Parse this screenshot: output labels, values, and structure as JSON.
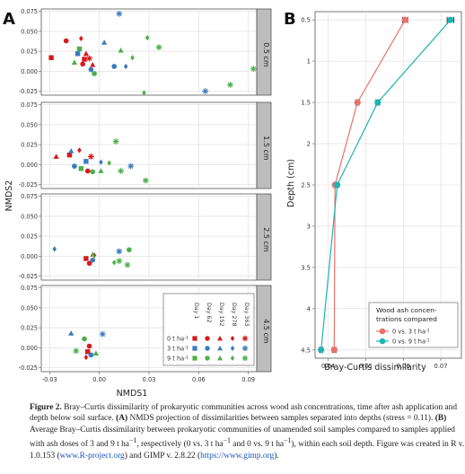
{
  "panel_a": {
    "letter": "A",
    "xlabel": "NMDS1",
    "ylabel": "NMDS2",
    "xlim": [
      -0.035,
      0.095
    ],
    "ylim": [
      -0.03,
      0.078
    ],
    "xticks": [
      "-0.03",
      "0.00",
      "0.03",
      "0.06",
      "0.09"
    ],
    "yticks": [
      "0.075",
      "0.050",
      "0.025",
      "0.000",
      "-0.025"
    ],
    "facets": [
      "0.5 cm",
      "1.5 cm",
      "2.5 cm",
      "4.5 cm"
    ],
    "legend": {
      "days": [
        "Day 1",
        "Day 62",
        "Day 152",
        "Day 278",
        "Day 363"
      ],
      "rows": [
        "0 t ha",
        "3 t ha",
        "9 t ha"
      ],
      "row_superscript": "-1",
      "colors": [
        "#d7191c",
        "#3a7bbf",
        "#4daf4a"
      ],
      "shapes": [
        "square",
        "circle",
        "triangle",
        "diamond",
        "star"
      ]
    }
  },
  "panel_b": {
    "letter": "B",
    "xlabel": "Bray-Curtis dissimilarity",
    "ylabel": "Depth (cm)",
    "xticks": [
      "0.04",
      "0.05",
      "0.06",
      "0.07"
    ],
    "yticks": [
      "0.5",
      "1",
      "1.5",
      "2",
      "2.5",
      "3",
      "3.5",
      "4",
      "4.5"
    ],
    "legend_title_line1": "Wood ash concen-",
    "legend_title_line2": "trations compared",
    "legend_entries": [
      "0 vs. 3 t ha",
      "0 vs. 9 t ha"
    ],
    "legend_superscript": "-1"
  },
  "chart_data": [
    {
      "type": "scatter",
      "title": "",
      "xlabel": "NMDS1",
      "ylabel": "NMDS2",
      "xlim": [
        -0.035,
        0.095
      ],
      "ylim": [
        -0.03,
        0.078
      ],
      "grid": true,
      "facet_by": "depth",
      "series_key": "ash dose (color) x sampling day (shape)",
      "points": [
        {
          "facet": "0.5 cm",
          "dose": 0,
          "day": 1,
          "x": -0.029,
          "y": 0.017
        },
        {
          "facet": "0.5 cm",
          "dose": 0,
          "day": 62,
          "x": -0.02,
          "y": 0.038
        },
        {
          "facet": "0.5 cm",
          "dose": 0,
          "day": 152,
          "x": -0.008,
          "y": 0.022
        },
        {
          "facet": "0.5 cm",
          "dose": 0,
          "day": 278,
          "x": -0.011,
          "y": 0.041
        },
        {
          "facet": "0.5 cm",
          "dose": 0,
          "day": 363,
          "x": -0.006,
          "y": 0.016
        },
        {
          "facet": "0.5 cm",
          "dose": 0,
          "day": 1,
          "x": -0.009,
          "y": 0.015
        },
        {
          "facet": "0.5 cm",
          "dose": 0,
          "day": 62,
          "x": -0.01,
          "y": 0.009
        },
        {
          "facet": "0.5 cm",
          "dose": 0,
          "day": 152,
          "x": -0.004,
          "y": 0.008
        },
        {
          "facet": "0.5 cm",
          "dose": 3,
          "day": 1,
          "x": -0.013,
          "y": 0.022
        },
        {
          "facet": "0.5 cm",
          "dose": 3,
          "day": 62,
          "x": -0.005,
          "y": 0.002
        },
        {
          "facet": "0.5 cm",
          "dose": 3,
          "day": 152,
          "x": 0.003,
          "y": 0.036
        },
        {
          "facet": "0.5 cm",
          "dose": 3,
          "day": 278,
          "x": 0.016,
          "y": 0.006
        },
        {
          "facet": "0.5 cm",
          "dose": 3,
          "day": 363,
          "x": 0.012,
          "y": 0.072
        },
        {
          "facet": "0.5 cm",
          "dose": 3,
          "day": 363,
          "x": 0.064,
          "y": -0.025
        },
        {
          "facet": "0.5 cm",
          "dose": 3,
          "day": 62,
          "x": 0.009,
          "y": 0.006
        },
        {
          "facet": "0.5 cm",
          "dose": 9,
          "day": 1,
          "x": -0.012,
          "y": 0.028
        },
        {
          "facet": "0.5 cm",
          "dose": 9,
          "day": 62,
          "x": -0.003,
          "y": -0.003
        },
        {
          "facet": "0.5 cm",
          "dose": 9,
          "day": 152,
          "x": -0.015,
          "y": 0.011
        },
        {
          "facet": "0.5 cm",
          "dose": 9,
          "day": 152,
          "x": 0.013,
          "y": 0.026
        },
        {
          "facet": "0.5 cm",
          "dose": 9,
          "day": 278,
          "x": 0.02,
          "y": 0.017
        },
        {
          "facet": "0.5 cm",
          "dose": 9,
          "day": 278,
          "x": 0.029,
          "y": 0.042
        },
        {
          "facet": "0.5 cm",
          "dose": 9,
          "day": 278,
          "x": 0.027,
          "y": -0.027
        },
        {
          "facet": "0.5 cm",
          "dose": 9,
          "day": 363,
          "x": 0.036,
          "y": 0.03
        },
        {
          "facet": "0.5 cm",
          "dose": 9,
          "day": 363,
          "x": 0.079,
          "y": -0.017
        },
        {
          "facet": "0.5 cm",
          "dose": 9,
          "day": 363,
          "x": 0.093,
          "y": 0.003
        },
        {
          "facet": "1.5 cm",
          "dose": 0,
          "day": 1,
          "x": -0.018,
          "y": 0.012
        },
        {
          "facet": "1.5 cm",
          "dose": 0,
          "day": 152,
          "x": -0.026,
          "y": 0.01
        },
        {
          "facet": "1.5 cm",
          "dose": 0,
          "day": 62,
          "x": -0.007,
          "y": -0.008
        },
        {
          "facet": "1.5 cm",
          "dose": 0,
          "day": 363,
          "x": -0.005,
          "y": 0.01
        },
        {
          "facet": "1.5 cm",
          "dose": 0,
          "day": 278,
          "x": -0.012,
          "y": 0.018
        },
        {
          "facet": "1.5 cm",
          "dose": 3,
          "day": 1,
          "x": -0.008,
          "y": 0.004
        },
        {
          "facet": "1.5 cm",
          "dose": 3,
          "day": 62,
          "x": -0.015,
          "y": -0.002
        },
        {
          "facet": "1.5 cm",
          "dose": 3,
          "day": 152,
          "x": -0.017,
          "y": 0.017
        },
        {
          "facet": "1.5 cm",
          "dose": 3,
          "day": 278,
          "x": 0.001,
          "y": 0.003
        },
        {
          "facet": "1.5 cm",
          "dose": 3,
          "day": 363,
          "x": 0.019,
          "y": -0.002
        },
        {
          "facet": "1.5 cm",
          "dose": 9,
          "day": 1,
          "x": -0.011,
          "y": -0.005
        },
        {
          "facet": "1.5 cm",
          "dose": 9,
          "day": 62,
          "x": -0.004,
          "y": -0.009
        },
        {
          "facet": "1.5 cm",
          "dose": 9,
          "day": 152,
          "x": 0.001,
          "y": -0.008
        },
        {
          "facet": "1.5 cm",
          "dose": 9,
          "day": 278,
          "x": 0.006,
          "y": 0.002
        },
        {
          "facet": "1.5 cm",
          "dose": 9,
          "day": 363,
          "x": 0.01,
          "y": 0.029
        },
        {
          "facet": "1.5 cm",
          "dose": 9,
          "day": 363,
          "x": 0.013,
          "y": -0.008
        },
        {
          "facet": "1.5 cm",
          "dose": 9,
          "day": 363,
          "x": 0.028,
          "y": -0.02
        },
        {
          "facet": "2.5 cm",
          "dose": 0,
          "day": 1,
          "x": -0.008,
          "y": -0.003
        },
        {
          "facet": "2.5 cm",
          "dose": 0,
          "day": 62,
          "x": -0.006,
          "y": -0.009
        },
        {
          "facet": "2.5 cm",
          "dose": 0,
          "day": 278,
          "x": -0.003,
          "y": 0.001
        },
        {
          "facet": "2.5 cm",
          "dose": 3,
          "day": 278,
          "x": -0.027,
          "y": 0.009
        },
        {
          "facet": "2.5 cm",
          "dose": 3,
          "day": 62,
          "x": -0.004,
          "y": -0.005
        },
        {
          "facet": "2.5 cm",
          "dose": 3,
          "day": 363,
          "x": 0.012,
          "y": 0.006
        },
        {
          "facet": "2.5 cm",
          "dose": 9,
          "day": 62,
          "x": 0.018,
          "y": 0.008
        },
        {
          "facet": "2.5 cm",
          "dose": 9,
          "day": 152,
          "x": -0.004,
          "y": 0.002
        },
        {
          "facet": "2.5 cm",
          "dose": 9,
          "day": 278,
          "x": 0.009,
          "y": -0.008
        },
        {
          "facet": "2.5 cm",
          "dose": 9,
          "day": 363,
          "x": 0.012,
          "y": -0.006
        },
        {
          "facet": "2.5 cm",
          "dose": 9,
          "day": 363,
          "x": 0.017,
          "y": -0.011
        },
        {
          "facet": "4.5 cm",
          "dose": 0,
          "day": 1,
          "x": -0.007,
          "y": -0.005
        },
        {
          "facet": "4.5 cm",
          "dose": 0,
          "day": 62,
          "x": -0.006,
          "y": 0.002
        },
        {
          "facet": "4.5 cm",
          "dose": 0,
          "day": 278,
          "x": -0.008,
          "y": -0.012
        },
        {
          "facet": "4.5 cm",
          "dose": 3,
          "day": 152,
          "x": -0.017,
          "y": 0.018
        },
        {
          "facet": "4.5 cm",
          "dose": 3,
          "day": 363,
          "x": 0.002,
          "y": 0.017
        },
        {
          "facet": "4.5 cm",
          "dose": 3,
          "day": 62,
          "x": -0.005,
          "y": -0.009
        },
        {
          "facet": "4.5 cm",
          "dose": 9,
          "day": 62,
          "x": -0.009,
          "y": 0.011
        },
        {
          "facet": "4.5 cm",
          "dose": 9,
          "day": 363,
          "x": -0.014,
          "y": -0.004
        },
        {
          "facet": "4.5 cm",
          "dose": 9,
          "day": 152,
          "x": -0.002,
          "y": -0.007
        }
      ]
    },
    {
      "type": "line",
      "title": "",
      "xlabel": "Bray-Curtis dissimilarity",
      "ylabel": "Depth (cm)",
      "xlim": [
        0.0365,
        0.0755
      ],
      "ylim": [
        4.6,
        0.4
      ],
      "y_reversed": true,
      "grid": true,
      "legend_title": "Wood ash concentrations compared",
      "legend_position": "bottom-right",
      "series": [
        {
          "name": "0 vs. 3 t ha-1",
          "color": "#e8736b",
          "depth": [
            0.5,
            1.5,
            2.5,
            4.5
          ],
          "values": [
            0.0605,
            0.0478,
            0.0418,
            0.0416
          ],
          "error": [
            0.0007,
            0.0004,
            0.0003,
            0.0005
          ]
        },
        {
          "name": "0 vs. 9 t ha-1",
          "color": "#1fb3b3",
          "depth": [
            0.5,
            1.5,
            2.5,
            4.5
          ],
          "values": [
            0.0726,
            0.0532,
            0.0424,
            0.0381
          ],
          "error": [
            0.0009,
            0.0005,
            0.0003,
            0.0004
          ]
        }
      ]
    }
  ],
  "caption": {
    "lead": "Figure 2.",
    "text1": " Bray–Curtis dissimilarity of prokaryotic communities across wood ash concentrations, time after ash application and depth below soil surface. ",
    "a": "(A)",
    "text2": " NMDS projection of dissimilarities between samples separated into depths (stress = 0.11). ",
    "b": "(B)",
    "text3": " Average Bray–Curtis dissimilarity between prokaryotic communities of unamended soil samples compared to samples applied with ash doses of 3 and 9 t ha",
    "sup": "−1",
    "text4": ", respectively (0 vs. 3 t ha",
    "text5": " and 0 vs. 9 t ha",
    "text6": "), within each soil depth. Figure was created in R v. 1.0.153 (",
    "link1": "www.R-project.org",
    "text7": ") and GIMP v. 2.8.22 (",
    "link2": "https://www.gimp.org",
    "text8": ")."
  }
}
